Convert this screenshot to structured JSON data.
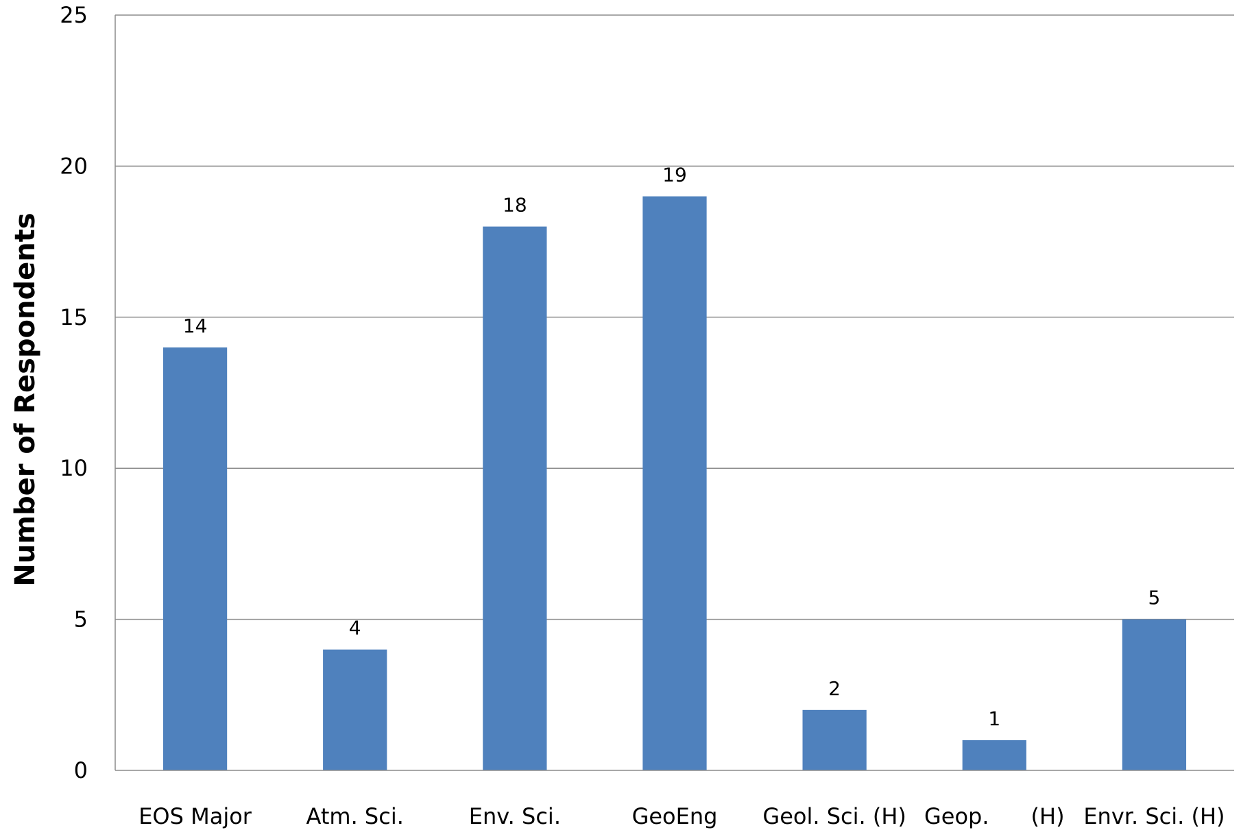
{
  "chart_data": {
    "type": "bar",
    "title": "",
    "xlabel": "",
    "ylabel": "Number of Respondents",
    "categories": [
      "EOS Major",
      "Atm. Sci.",
      "Env. Sci.",
      "GeoEng",
      "Geol. Sci. (H)",
      "Geop.      (H)",
      "Envr. Sci. (H)"
    ],
    "values": [
      14,
      4,
      18,
      19,
      2,
      1,
      5
    ],
    "data_labels": [
      "14",
      "4",
      "18",
      "19",
      "2",
      "1",
      "5"
    ],
    "ylim": [
      0,
      25
    ],
    "yticks": [
      0,
      5,
      10,
      15,
      20,
      25
    ],
    "ytick_labels": [
      "0",
      "5",
      "10",
      "15",
      "20",
      "25"
    ],
    "grid": true,
    "legend": "none",
    "colors": {
      "bar": "#4F81BD",
      "grid": "#8C8C8C",
      "axis": "#8C8C8C"
    }
  }
}
